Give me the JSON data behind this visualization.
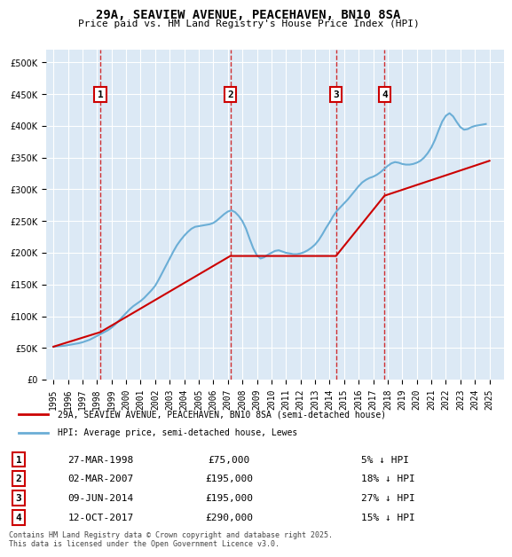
{
  "title": "29A, SEAVIEW AVENUE, PEACEHAVEN, BN10 8SA",
  "subtitle": "Price paid vs. HM Land Registry's House Price Index (HPI)",
  "footer": "Contains HM Land Registry data © Crown copyright and database right 2025.\nThis data is licensed under the Open Government Licence v3.0.",
  "legend_line1": "29A, SEAVIEW AVENUE, PEACEHAVEN, BN10 8SA (semi-detached house)",
  "legend_line2": "HPI: Average price, semi-detached house, Lewes",
  "transactions": [
    {
      "num": 1,
      "date": "27-MAR-1998",
      "price": 75000,
      "pct": "5%",
      "dir": "↓",
      "year": 1998.23
    },
    {
      "num": 2,
      "date": "02-MAR-2007",
      "price": 195000,
      "pct": "18%",
      "dir": "↓",
      "year": 2007.17
    },
    {
      "num": 3,
      "date": "09-JUN-2014",
      "price": 195000,
      "pct": "27%",
      "dir": "↓",
      "year": 2014.44
    },
    {
      "num": 4,
      "date": "12-OCT-2017",
      "price": 290000,
      "pct": "15%",
      "dir": "↓",
      "year": 2017.78
    }
  ],
  "hpi_color": "#6baed6",
  "price_color": "#cc0000",
  "dashed_line_color": "#cc0000",
  "marker_box_color": "#cc0000",
  "background_color": "#dce9f5",
  "plot_bg_color": "#dce9f5",
  "ylim": [
    0,
    520000
  ],
  "yticks": [
    0,
    50000,
    100000,
    150000,
    200000,
    250000,
    300000,
    350000,
    400000,
    450000,
    500000
  ],
  "xlim": [
    1994.5,
    2026.0
  ],
  "xticks": [
    1995,
    1996,
    1997,
    1998,
    1999,
    2000,
    2001,
    2002,
    2003,
    2004,
    2005,
    2006,
    2007,
    2008,
    2009,
    2010,
    2011,
    2012,
    2013,
    2014,
    2015,
    2016,
    2017,
    2018,
    2019,
    2020,
    2021,
    2022,
    2023,
    2024,
    2025
  ],
  "hpi_data": {
    "years": [
      1995,
      1995.25,
      1995.5,
      1995.75,
      1996,
      1996.25,
      1996.5,
      1996.75,
      1997,
      1997.25,
      1997.5,
      1997.75,
      1998,
      1998.25,
      1998.5,
      1998.75,
      1999,
      1999.25,
      1999.5,
      1999.75,
      2000,
      2000.25,
      2000.5,
      2000.75,
      2001,
      2001.25,
      2001.5,
      2001.75,
      2002,
      2002.25,
      2002.5,
      2002.75,
      2003,
      2003.25,
      2003.5,
      2003.75,
      2004,
      2004.25,
      2004.5,
      2004.75,
      2005,
      2005.25,
      2005.5,
      2005.75,
      2006,
      2006.25,
      2006.5,
      2006.75,
      2007,
      2007.25,
      2007.5,
      2007.75,
      2008,
      2008.25,
      2008.5,
      2008.75,
      2009,
      2009.25,
      2009.5,
      2009.75,
      2010,
      2010.25,
      2010.5,
      2010.75,
      2011,
      2011.25,
      2011.5,
      2011.75,
      2012,
      2012.25,
      2012.5,
      2012.75,
      2013,
      2013.25,
      2013.5,
      2013.75,
      2014,
      2014.25,
      2014.5,
      2014.75,
      2015,
      2015.25,
      2015.5,
      2015.75,
      2016,
      2016.25,
      2016.5,
      2016.75,
      2017,
      2017.25,
      2017.5,
      2017.75,
      2018,
      2018.25,
      2018.5,
      2018.75,
      2019,
      2019.25,
      2019.5,
      2019.75,
      2020,
      2020.25,
      2020.5,
      2020.75,
      2021,
      2021.25,
      2021.5,
      2021.75,
      2022,
      2022.25,
      2022.5,
      2022.75,
      2023,
      2023.25,
      2023.5,
      2023.75,
      2024,
      2024.25,
      2024.5,
      2024.75
    ],
    "values": [
      52000,
      52500,
      53000,
      53500,
      54500,
      55500,
      56500,
      57500,
      59000,
      61000,
      63000,
      66000,
      69000,
      72000,
      75000,
      78000,
      82000,
      87000,
      93000,
      99000,
      105000,
      111000,
      116000,
      120000,
      124000,
      129000,
      135000,
      141000,
      148000,
      158000,
      169000,
      180000,
      191000,
      202000,
      212000,
      220000,
      227000,
      233000,
      238000,
      241000,
      242000,
      243000,
      244000,
      245000,
      247000,
      251000,
      256000,
      261000,
      265000,
      267000,
      264000,
      258000,
      250000,
      238000,
      222000,
      207000,
      196000,
      191000,
      193000,
      197000,
      200000,
      203000,
      204000,
      202000,
      200000,
      199000,
      198000,
      198000,
      199000,
      201000,
      204000,
      208000,
      213000,
      220000,
      229000,
      239000,
      248000,
      258000,
      266000,
      272000,
      278000,
      284000,
      291000,
      298000,
      305000,
      311000,
      315000,
      318000,
      320000,
      323000,
      327000,
      332000,
      337000,
      341000,
      343000,
      342000,
      340000,
      339000,
      339000,
      340000,
      342000,
      345000,
      350000,
      357000,
      366000,
      378000,
      393000,
      407000,
      416000,
      420000,
      415000,
      406000,
      398000,
      394000,
      395000,
      398000,
      400000,
      401000,
      402000,
      403000
    ]
  },
  "price_data": {
    "years": [
      1995,
      1998.23,
      2007.17,
      2014.44,
      2017.78,
      2025.0
    ],
    "values": [
      52000,
      75000,
      195000,
      195000,
      290000,
      345000
    ]
  }
}
